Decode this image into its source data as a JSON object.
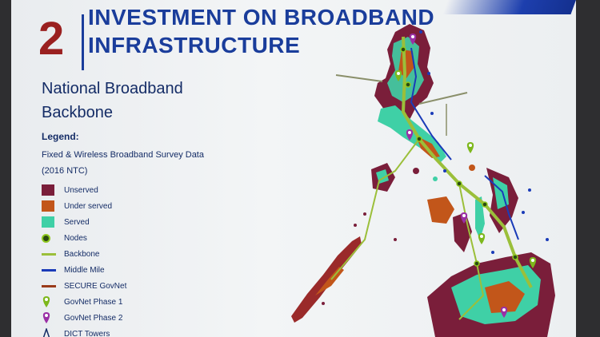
{
  "slide": {
    "section_number": "2",
    "title": "INVESTMENT ON BROADBAND INFRASTRUCTURE",
    "subtitle": "National Broadband Backbone"
  },
  "legend": {
    "heading": "Legend:",
    "description": "Fixed & Wireless Broadband Survey Data",
    "source": "(2016 NTC)",
    "items": [
      {
        "label": "Unserved",
        "icon": "square-swatch",
        "color": "#7a1e3a"
      },
      {
        "label": "Under served",
        "icon": "square-swatch",
        "color": "#c2561a"
      },
      {
        "label": "Served",
        "icon": "square-swatch",
        "color": "#3fd0a6"
      },
      {
        "label": "Nodes",
        "icon": "ring-marker",
        "color": "#8fc81e"
      },
      {
        "label": "Backbone",
        "icon": "line-swatch",
        "color": "#9bbf3a"
      },
      {
        "label": "Middle Mile",
        "icon": "line-swatch",
        "color": "#1a3bb8"
      },
      {
        "label": "SECURE GovNet",
        "icon": "line-swatch",
        "color": "#9a3b1a"
      },
      {
        "label": "GovNet Phase 1",
        "icon": "map-pin",
        "color": "#7db81c"
      },
      {
        "label": "GovNet Phase 2",
        "icon": "map-pin",
        "color": "#9a2fa6"
      },
      {
        "label": "DICT Towers",
        "icon": "tower-marker",
        "color": "#ffffff"
      }
    ]
  }
}
